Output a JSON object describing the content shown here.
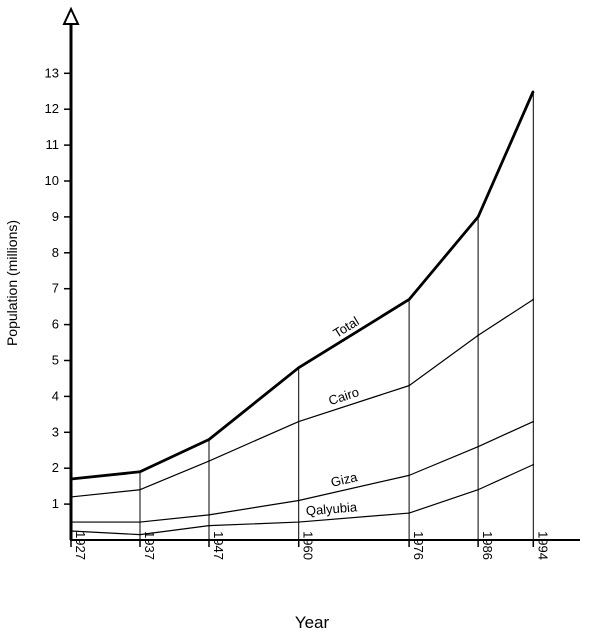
{
  "chart_data": {
    "type": "line",
    "title": "",
    "xlabel": "Year",
    "ylabel": "Population (millions)",
    "x": [
      1927,
      1937,
      1947,
      1960,
      1976,
      1986,
      1994
    ],
    "x_tick_labels": [
      "1927",
      "1937",
      "1947",
      "1960",
      "1976",
      "1986",
      "1994"
    ],
    "ylim": [
      0,
      13
    ],
    "y_ticks": [
      1,
      2,
      3,
      4,
      5,
      6,
      7,
      8,
      9,
      10,
      11,
      12,
      13
    ],
    "grid": false,
    "legend": "none (series labelled directly on lines)",
    "series": [
      {
        "name": "Total",
        "values": [
          1.7,
          1.9,
          2.8,
          4.8,
          6.7,
          9.0,
          12.5
        ]
      },
      {
        "name": "Cairo",
        "values": [
          1.2,
          1.4,
          2.2,
          3.3,
          4.3,
          5.7,
          6.7
        ]
      },
      {
        "name": "Giza",
        "values": [
          0.5,
          0.5,
          0.7,
          1.1,
          1.8,
          2.6,
          3.3
        ]
      },
      {
        "name": "Qalyubia",
        "values": [
          0.25,
          0.15,
          0.4,
          0.5,
          0.75,
          1.4,
          2.1
        ]
      }
    ]
  }
}
